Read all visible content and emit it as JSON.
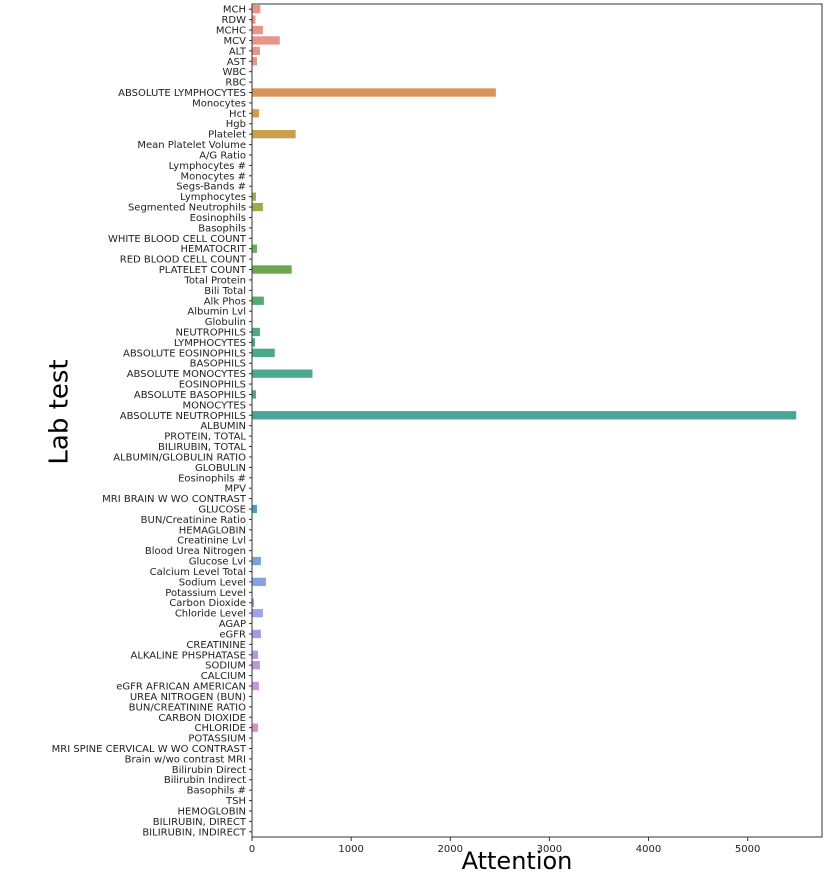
{
  "chart_data": {
    "type": "bar",
    "orientation": "horizontal",
    "title": "",
    "xlabel": "Attention",
    "ylabel": "Lab test",
    "xlim": [
      0,
      5750
    ],
    "xticks": [
      0,
      1000,
      2000,
      3000,
      4000,
      5000
    ],
    "grid": false,
    "categories": [
      "MCH",
      "RDW",
      "MCHC",
      "MCV",
      "ALT",
      "AST",
      "WBC",
      "RBC",
      "ABSOLUTE LYMPHOCYTES",
      "Monocytes",
      "Hct",
      "Hgb",
      "Platelet",
      "Mean Platelet Volume",
      "A/G Ratio",
      "Lymphocytes #",
      "Monocytes #",
      "Segs-Bands #",
      "Lymphocytes",
      "Segmented Neutrophils",
      "Eosinophils",
      "Basophils",
      "WHITE BLOOD CELL COUNT",
      "HEMATOCRIT",
      "RED BLOOD CELL COUNT",
      "PLATELET COUNT",
      "Total Protein",
      "Bili Total",
      "Alk Phos",
      "Albumin Lvl",
      "Globulin",
      "NEUTROPHILS",
      "LYMPHOCYTES",
      "ABSOLUTE EOSINOPHILS",
      "BASOPHILS",
      "ABSOLUTE MONOCYTES",
      "EOSINOPHILS",
      "ABSOLUTE BASOPHILS",
      "MONOCYTES",
      "ABSOLUTE NEUTROPHILS",
      "ALBUMIN",
      "PROTEIN, TOTAL",
      "BILIRUBIN, TOTAL",
      "ALBUMIN/GLOBULIN RATIO",
      "GLOBULIN",
      "Eosinophils #",
      "MPV",
      "MRI BRAIN W WO CONTRAST",
      "GLUCOSE",
      "BUN/Creatinine Ratio",
      "HEMAGLOBIN",
      "Creatinine Lvl",
      "Blood Urea Nitrogen",
      "Glucose Lvl",
      "Calcium Level Total",
      "Sodium Level",
      "Potassium Level",
      "Carbon Dioxide",
      "Chloride Level",
      "AGAP",
      "eGFR",
      "CREATININE",
      "ALKALINE PHSPHATASE",
      "SODIUM",
      "CALCIUM",
      "eGFR AFRICAN AMERICAN",
      "UREA NITROGEN (BUN)",
      "BUN/CREATININE RATIO",
      "CARBON DIOXIDE",
      "CHLORIDE",
      "POTASSIUM",
      "MRI SPINE CERVICAL W WO CONTRAST",
      "Brain w/wo contrast MRI",
      "Bilirubin Direct",
      "Bilirubin Indirect",
      "Basophils #",
      "TSH",
      "HEMOGLOBIN",
      "BILIRUBIN, DIRECT",
      "BILIRUBIN, INDIRECT"
    ],
    "values": [
      85,
      35,
      110,
      280,
      80,
      50,
      0,
      0,
      2460,
      0,
      70,
      0,
      440,
      0,
      0,
      0,
      0,
      0,
      40,
      110,
      0,
      0,
      0,
      50,
      0,
      400,
      0,
      0,
      120,
      0,
      0,
      80,
      30,
      230,
      0,
      610,
      0,
      40,
      0,
      5490,
      0,
      0,
      0,
      0,
      0,
      0,
      0,
      0,
      50,
      0,
      0,
      0,
      0,
      90,
      0,
      140,
      0,
      20,
      110,
      0,
      90,
      0,
      60,
      80,
      0,
      70,
      0,
      0,
      0,
      60,
      0,
      0,
      0,
      0,
      0,
      0,
      0,
      0,
      0,
      0
    ],
    "colors": [
      "#e8948a",
      "#e8948a",
      "#e8948a",
      "#e8948a",
      "#e8948a",
      "#e8948a",
      "#e8948a",
      "#e8948a",
      "#d9945a",
      "#d9975a",
      "#d59a4e",
      "#d09c4c",
      "#c9a04b",
      "#c4a24c",
      "#bda54c",
      "#b6a84c",
      "#aeab4b",
      "#a6ad4a",
      "#9eae4c",
      "#93b04e",
      "#86b150",
      "#7ab254",
      "#6fb358",
      "#67b05c",
      "#62ad5e",
      "#6ca64f",
      "#5db163",
      "#57b068",
      "#50ad6c",
      "#4fad70",
      "#4eac75",
      "#4eac79",
      "#4dab7e",
      "#4caa86",
      "#4caa89",
      "#4ba98d",
      "#4ba992",
      "#4aa896",
      "#4aa79c",
      "#4aa49a",
      "#4aa6a1",
      "#4aa5a6",
      "#4ba5aa",
      "#4ca4ae",
      "#4da3b2",
      "#4fa2b5",
      "#52a1b8",
      "#559fbb",
      "#4aa2c0",
      "#5c9ec6",
      "#619dcb",
      "#679bce",
      "#6c99d1",
      "#79a3da",
      "#7c98d6",
      "#85a3e0",
      "#8a96d8",
      "#9a9ee6",
      "#a0a3e5",
      "#a494d5",
      "#a89ae0",
      "#b196d7",
      "#b797dd",
      "#bb96dc",
      "#c295d6",
      "#c496db",
      "#c894d1",
      "#cc93cc",
      "#d191c6",
      "#d98fc4",
      "#db8fbf",
      "#dd8fb9",
      "#df8eb3",
      "#e08ead",
      "#e18ea7",
      "#e28ea1",
      "#e38e9b",
      "#e48e95",
      "#e58e90",
      "#e68e8b"
    ]
  }
}
